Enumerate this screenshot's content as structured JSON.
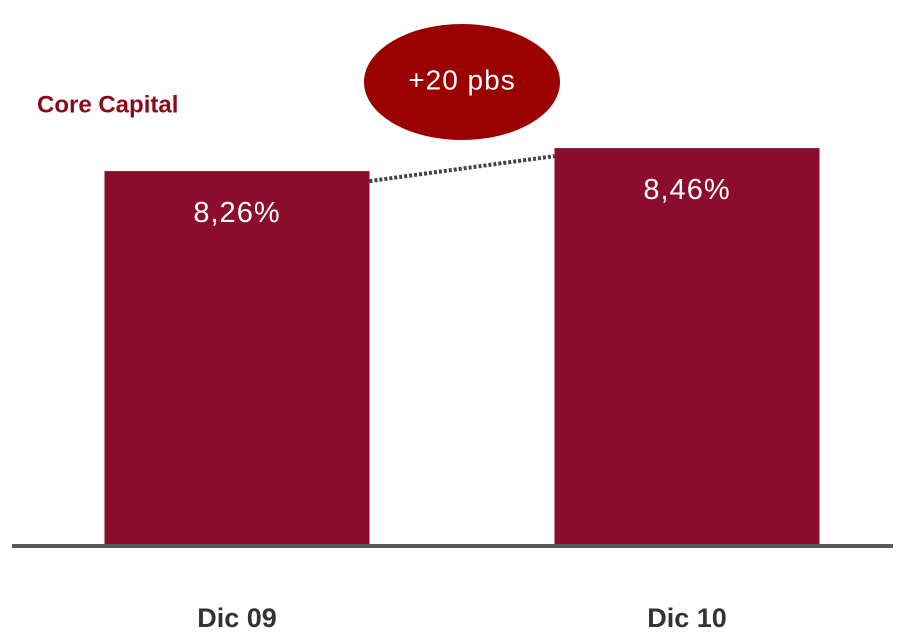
{
  "chart_data": {
    "type": "bar",
    "title": "Core Capital",
    "categories": [
      "Dic 09",
      "Dic 10"
    ],
    "values": [
      8.26,
      8.46
    ],
    "value_labels": [
      "8,26%",
      "8,46%"
    ],
    "color": "#8c0c2c",
    "ylim": [
      5,
      9
    ],
    "annotation": "+20 pbs",
    "annotation_color": "#9b0000"
  }
}
